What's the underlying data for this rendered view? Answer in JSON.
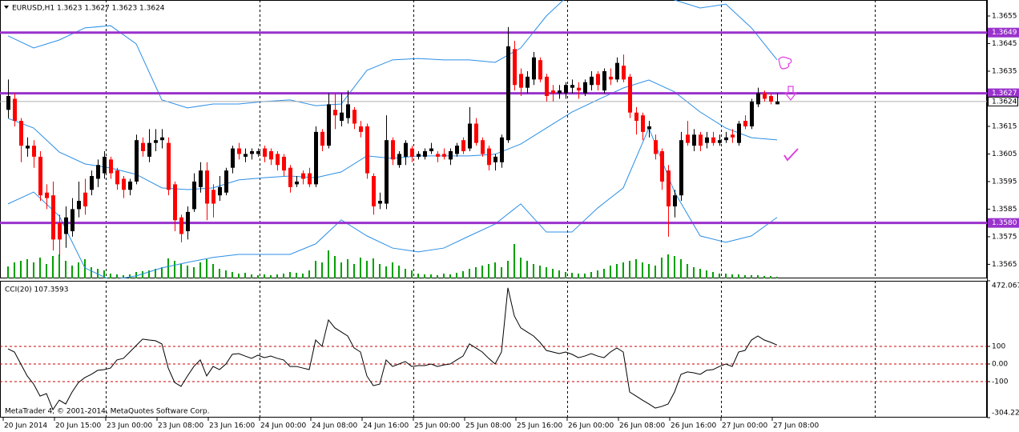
{
  "chart_data": {
    "type": "candlestick",
    "title": "EURUSD,H1  1.3623 1.3627 1.3623 1.3624",
    "footer": "MetaTrader 4, © 2001-2014, MetaQuotes Software Corp.",
    "categories": [
      "20 Jun 2014",
      null,
      null,
      null,
      null,
      null,
      null,
      null,
      "20 Jun 15:00",
      null,
      null,
      null,
      null,
      null,
      null,
      null,
      "23 Jun 00:00",
      null,
      null,
      null,
      null,
      null,
      null,
      null,
      "23 Jun 08:00",
      null,
      null,
      null,
      null,
      null,
      null,
      null,
      "23 Jun 16:00",
      null,
      null,
      null,
      null,
      null,
      null,
      null,
      "24 Jun 00:00",
      null,
      null,
      null,
      null,
      null,
      null,
      null,
      "24 Jun 08:00",
      null,
      null,
      null,
      null,
      null,
      null,
      null,
      "24 Jun 16:00",
      null,
      null,
      null,
      null,
      null,
      null,
      null,
      "25 Jun 00:00",
      null,
      null,
      null,
      null,
      null,
      null,
      null,
      "25 Jun 08:00",
      null,
      null,
      null,
      null,
      null,
      null,
      null,
      "25 Jun 16:00",
      null,
      null,
      null,
      null,
      null,
      null,
      null,
      "26 Jun 00:00",
      null,
      null,
      null,
      null,
      null,
      null,
      null,
      "26 Jun 08:00",
      null,
      null,
      null,
      null,
      null,
      null,
      null,
      "26 Jun 16:00",
      null,
      null,
      null,
      null,
      null,
      null,
      null,
      "27 Jun 00:00",
      null,
      null,
      null,
      null,
      null,
      null,
      null,
      "27 Jun 08:00"
    ],
    "ohlc": [
      [
        1.3621,
        1.3632,
        1.3618,
        1.3626
      ],
      [
        1.3625,
        1.3627,
        1.3615,
        1.3617
      ],
      [
        1.3617,
        1.3618,
        1.3602,
        1.3608
      ],
      [
        1.3607,
        1.3611,
        1.3604,
        1.3608
      ],
      [
        1.3608,
        1.361,
        1.36,
        1.3604
      ],
      [
        1.3604,
        1.3606,
        1.3588,
        1.359
      ],
      [
        1.3591,
        1.3594,
        1.3585,
        1.3589
      ],
      [
        1.359,
        1.3595,
        1.357,
        1.3574
      ],
      [
        1.358,
        1.3583,
        1.3568,
        1.3574
      ],
      [
        1.3576,
        1.3586,
        1.3571,
        1.3582
      ],
      [
        1.3577,
        1.3589,
        1.3575,
        1.3585
      ],
      [
        1.3585,
        1.3595,
        1.3582,
        1.3588
      ],
      [
        1.3591,
        1.3596,
        1.3583,
        1.3586
      ],
      [
        1.3592,
        1.3599,
        1.359,
        1.3597
      ],
      [
        1.3596,
        1.3603,
        1.3593,
        1.3601
      ],
      [
        1.3598,
        1.3606,
        1.3596,
        1.3604
      ],
      [
        1.3603,
        1.3604,
        1.3596,
        1.3598
      ],
      [
        1.3599,
        1.36,
        1.3592,
        1.3594
      ],
      [
        1.3596,
        1.3597,
        1.3589,
        1.3592
      ],
      [
        1.3592,
        1.3596,
        1.359,
        1.3595
      ],
      [
        1.3595,
        1.3612,
        1.3594,
        1.361
      ],
      [
        1.3609,
        1.3611,
        1.3604,
        1.3606
      ],
      [
        1.3604,
        1.3614,
        1.3602,
        1.3609
      ],
      [
        1.3609,
        1.3614,
        1.3606,
        1.361
      ],
      [
        1.361,
        1.3614,
        1.3607,
        1.3611
      ],
      [
        1.3609,
        1.3611,
        1.359,
        1.3592
      ],
      [
        1.3594,
        1.3595,
        1.3577,
        1.3581
      ],
      [
        1.3582,
        1.3583,
        1.3573,
        1.3576
      ],
      [
        1.3577,
        1.3586,
        1.3574,
        1.3584
      ],
      [
        1.3585,
        1.3598,
        1.3584,
        1.3595
      ],
      [
        1.3593,
        1.3602,
        1.3591,
        1.3599
      ],
      [
        1.3599,
        1.3602,
        1.3581,
        1.3587
      ],
      [
        1.3592,
        1.3594,
        1.3582,
        1.3587
      ],
      [
        1.359,
        1.3597,
        1.3588,
        1.3593
      ],
      [
        1.3591,
        1.36,
        1.359,
        1.3599
      ],
      [
        1.36,
        1.3608,
        1.3598,
        1.3607
      ],
      [
        1.3607,
        1.3609,
        1.3603,
        1.3605
      ],
      [
        1.3604,
        1.3607,
        1.3602,
        1.3605
      ],
      [
        1.3605,
        1.3607,
        1.3603,
        1.3606
      ],
      [
        1.3605,
        1.3607,
        1.3604,
        1.3606
      ],
      [
        1.3607,
        1.3608,
        1.3602,
        1.3604
      ],
      [
        1.3606,
        1.3607,
        1.3601,
        1.3603
      ],
      [
        1.3605,
        1.3606,
        1.3599,
        1.3601
      ],
      [
        1.3604,
        1.3605,
        1.3597,
        1.3599
      ],
      [
        1.36,
        1.3601,
        1.3591,
        1.3593
      ],
      [
        1.3594,
        1.3597,
        1.3593,
        1.3595
      ],
      [
        1.3598,
        1.3599,
        1.3594,
        1.3596
      ],
      [
        1.3598,
        1.36,
        1.3593,
        1.3594
      ],
      [
        1.3594,
        1.3615,
        1.3593,
        1.3613
      ],
      [
        1.3613,
        1.3614,
        1.3606,
        1.3608
      ],
      [
        1.3608,
        1.3627,
        1.3607,
        1.3623
      ],
      [
        1.3621,
        1.3627,
        1.3614,
        1.3619
      ],
      [
        1.3617,
        1.3627,
        1.3615,
        1.362
      ],
      [
        1.3618,
        1.3628,
        1.3616,
        1.3623
      ],
      [
        1.3621,
        1.3622,
        1.3614,
        1.3616
      ],
      [
        1.3615,
        1.3617,
        1.3611,
        1.3613
      ],
      [
        1.3615,
        1.3616,
        1.3596,
        1.3598
      ],
      [
        1.3597,
        1.3598,
        1.3583,
        1.3586
      ],
      [
        1.3587,
        1.3591,
        1.3585,
        1.3588
      ],
      [
        1.3587,
        1.3619,
        1.3585,
        1.361
      ],
      [
        1.361,
        1.3611,
        1.3601,
        1.3603
      ],
      [
        1.3601,
        1.3606,
        1.36,
        1.3605
      ],
      [
        1.3604,
        1.361,
        1.3601,
        1.3609
      ],
      [
        1.3607,
        1.3608,
        1.3602,
        1.3604
      ],
      [
        1.3604,
        1.3606,
        1.3603,
        1.3605
      ],
      [
        1.3604,
        1.3607,
        1.3603,
        1.3606
      ],
      [
        1.3606,
        1.3609,
        1.3605,
        1.3607
      ],
      [
        1.3605,
        1.3606,
        1.3602,
        1.3604
      ],
      [
        1.3605,
        1.3607,
        1.3603,
        1.3604
      ],
      [
        1.3603,
        1.3607,
        1.3601,
        1.3606
      ],
      [
        1.3605,
        1.3609,
        1.3604,
        1.3608
      ],
      [
        1.361,
        1.3611,
        1.3605,
        1.3606
      ],
      [
        1.3607,
        1.3622,
        1.3606,
        1.3616
      ],
      [
        1.3616,
        1.3618,
        1.3608,
        1.3609
      ],
      [
        1.361,
        1.3611,
        1.3604,
        1.3605
      ],
      [
        1.3607,
        1.3608,
        1.3599,
        1.3601
      ],
      [
        1.3602,
        1.3605,
        1.3599,
        1.3604
      ],
      [
        1.3602,
        1.3612,
        1.36,
        1.3611
      ],
      [
        1.361,
        1.3651,
        1.3609,
        1.3644
      ],
      [
        1.3643,
        1.3646,
        1.3628,
        1.363
      ],
      [
        1.3634,
        1.3636,
        1.3626,
        1.3629
      ],
      [
        1.3629,
        1.3635,
        1.3627,
        1.3633
      ],
      [
        1.3632,
        1.3642,
        1.363,
        1.364
      ],
      [
        1.3639,
        1.364,
        1.3631,
        1.3632
      ],
      [
        1.3633,
        1.3634,
        1.3624,
        1.3626
      ],
      [
        1.3628,
        1.363,
        1.3624,
        1.3627
      ],
      [
        1.3627,
        1.363,
        1.3625,
        1.3628
      ],
      [
        1.3627,
        1.3631,
        1.3625,
        1.363
      ],
      [
        1.3629,
        1.3632,
        1.3627,
        1.363
      ],
      [
        1.3629,
        1.3631,
        1.3625,
        1.3628
      ],
      [
        1.3627,
        1.3632,
        1.3626,
        1.3631
      ],
      [
        1.363,
        1.3635,
        1.3628,
        1.3633
      ],
      [
        1.3634,
        1.3635,
        1.3628,
        1.363
      ],
      [
        1.3628,
        1.3636,
        1.3627,
        1.3635
      ],
      [
        1.3633,
        1.3636,
        1.363,
        1.3632
      ],
      [
        1.3632,
        1.364,
        1.3631,
        1.3638
      ],
      [
        1.3637,
        1.3641,
        1.3631,
        1.3632
      ],
      [
        1.3633,
        1.3634,
        1.3618,
        1.362
      ],
      [
        1.362,
        1.3622,
        1.3612,
        1.3617
      ],
      [
        1.3619,
        1.362,
        1.361,
        1.3613
      ],
      [
        1.3614,
        1.3617,
        1.3611,
        1.3615
      ],
      [
        1.361,
        1.3612,
        1.3603,
        1.3605
      ],
      [
        1.3606,
        1.3607,
        1.3592,
        1.3595
      ],
      [
        1.3599,
        1.3601,
        1.3575,
        1.3586
      ],
      [
        1.3586,
        1.3592,
        1.3582,
        1.359
      ],
      [
        1.359,
        1.3613,
        1.3588,
        1.361
      ],
      [
        1.3612,
        1.3617,
        1.3608,
        1.3609
      ],
      [
        1.3608,
        1.3614,
        1.3606,
        1.3612
      ],
      [
        1.3612,
        1.3613,
        1.3606,
        1.3608
      ],
      [
        1.3609,
        1.3613,
        1.3607,
        1.3611
      ],
      [
        1.3611,
        1.3613,
        1.3608,
        1.3609
      ],
      [
        1.3609,
        1.3612,
        1.3608,
        1.361
      ],
      [
        1.361,
        1.3613,
        1.3609,
        1.3611
      ],
      [
        1.3612,
        1.3614,
        1.3609,
        1.3611
      ],
      [
        1.3609,
        1.3617,
        1.3608,
        1.3616
      ],
      [
        1.3617,
        1.3619,
        1.3614,
        1.3615
      ],
      [
        1.3615,
        1.3625,
        1.3614,
        1.3624
      ],
      [
        1.3623,
        1.3629,
        1.3622,
        1.3627
      ],
      [
        1.3627,
        1.3628,
        1.3624,
        1.3625
      ],
      [
        1.3626,
        1.3627,
        1.3623,
        1.3624
      ],
      [
        1.3623,
        1.3627,
        1.3623,
        1.3624
      ]
    ],
    "up_color": "#000000",
    "down_color": "#ff0000",
    "ylim": [
      1.35599,
      1.36608
    ],
    "yticks": [
      1.3655,
      1.3645,
      1.3635,
      1.3615,
      1.3605,
      1.3595,
      1.3585,
      1.3575,
      1.3565
    ],
    "hlines": [
      1.3649,
      1.3627,
      {
        "value": 1.358,
        "label": "1.3580"
      }
    ],
    "hline_color": "#9932cc",
    "current_price": 1.3624,
    "band_x": [
      0,
      4,
      8,
      12,
      16,
      20,
      24,
      28,
      32,
      36,
      40,
      44,
      48,
      52,
      56,
      60,
      64,
      68,
      72,
      76,
      80,
      84,
      88,
      92,
      96,
      100,
      104,
      108,
      112,
      116,
      120
    ],
    "bands": [
      {
        "color": "#2b8fe6",
        "values": [
          1.36478,
          1.36434,
          1.36463,
          1.36507,
          1.36515,
          1.36449,
          1.36246,
          1.36217,
          1.36231,
          1.36231,
          1.3624,
          1.36246,
          1.36225,
          1.36231,
          1.36353,
          1.36391,
          1.36396,
          1.36391,
          1.36391,
          1.36382,
          1.36434,
          1.3655,
          1.36637,
          1.36695,
          1.36695,
          1.36666,
          1.36608,
          1.36579,
          1.36593,
          1.36507,
          1.36391
        ]
      },
      {
        "color": "#2b8fe6",
        "values": [
          1.36179,
          1.36144,
          1.36057,
          1.36014,
          1.35999,
          1.35976,
          1.35927,
          1.35921,
          1.35927,
          1.35956,
          1.35964,
          1.3597,
          1.35964,
          1.35985,
          1.36043,
          1.36034,
          1.36043,
          1.36043,
          1.36043,
          1.36049,
          1.36086,
          1.36144,
          1.36202,
          1.36246,
          1.36289,
          1.36318,
          1.36275,
          1.36202,
          1.36144,
          1.36109,
          1.36101
        ]
      },
      {
        "color": "#2b8fe6",
        "values": [
          1.35869,
          1.35912,
          1.35825,
          1.35637,
          1.35593,
          1.35608,
          1.35637,
          1.35657,
          1.35675,
          1.35686,
          1.35686,
          1.35686,
          1.35724,
          1.35811,
          1.35753,
          1.35709,
          1.35695,
          1.35709,
          1.35753,
          1.35796,
          1.35869,
          1.35767,
          1.35767,
          1.35854,
          1.35927,
          1.36144,
          1.35912,
          1.35753,
          1.3573,
          1.35753,
          1.3582
        ]
      }
    ],
    "volume": [
      1500,
      2000,
      2200,
      2400,
      2000,
      2600,
      1800,
      2800,
      3000,
      2200,
      1600,
      2000,
      2400,
      1400,
      1200,
      1000,
      600,
      500,
      400,
      500,
      800,
      900,
      1000,
      1200,
      1400,
      2500,
      2200,
      1800,
      1600,
      1400,
      2000,
      2400,
      1800,
      1200,
      1000,
      800,
      600,
      700,
      500,
      400,
      500,
      400,
      500,
      600,
      800,
      700,
      600,
      1000,
      2200,
      2000,
      3500,
      2800,
      2000,
      2400,
      1800,
      2600,
      2200,
      2500,
      1800,
      1500,
      2000,
      1600,
      1200,
      1000,
      600,
      500,
      500,
      400,
      600,
      500,
      700,
      900,
      1200,
      1400,
      1600,
      1800,
      2000,
      1400,
      2200,
      4300,
      2600,
      2200,
      1800,
      1600,
      1400,
      1200,
      1000,
      800,
      700,
      600,
      600,
      800,
      1000,
      1200,
      1600,
      1800,
      2000,
      2200,
      2400,
      2000,
      1800,
      1600,
      2600,
      3000,
      2800,
      2400,
      1800,
      1400,
      1200,
      1000,
      800,
      600,
      600,
      500,
      500,
      400,
      400,
      400,
      300,
      300,
      200
    ],
    "volume_color": "#00a000",
    "cci": {
      "title": "CCI(20) 107.3593",
      "color": "#000000",
      "values": [
        86,
        68,
        0,
        -68,
        -114,
        -182,
        -168,
        -259,
        -205,
        -227,
        -159,
        -105,
        -77,
        -59,
        -36,
        -32,
        -23,
        23,
        32,
        68,
        105,
        141,
        136,
        132,
        114,
        -23,
        -105,
        -127,
        -68,
        -14,
        23,
        -68,
        -14,
        -32,
        0,
        55,
        59,
        45,
        32,
        50,
        36,
        45,
        32,
        23,
        -14,
        -14,
        -23,
        -32,
        136,
        100,
        250,
        205,
        182,
        159,
        91,
        68,
        -68,
        -123,
        -114,
        23,
        -14,
        0,
        14,
        -14,
        -9,
        -9,
        0,
        -14,
        -5,
        0,
        23,
        45,
        114,
        91,
        68,
        32,
        0,
        68,
        432,
        273,
        205,
        182,
        159,
        123,
        77,
        68,
        59,
        68,
        55,
        36,
        45,
        59,
        45,
        36,
        68,
        91,
        68,
        -159,
        -182,
        -205,
        -227,
        -250,
        -241,
        -227,
        -159,
        -59,
        -45,
        -50,
        -59,
        -36,
        -32,
        -14,
        0,
        -14,
        68,
        77,
        136,
        159,
        136,
        123,
        107.3593
      ],
      "ylim": [
        -304.223,
        472.0675
      ],
      "yticks": [
        472.0675,
        100,
        {
          "value": 0,
          "label": "0.00"
        },
        -100,
        -304.223
      ],
      "levels": [
        100,
        0,
        -100
      ],
      "level_color": "#cc0000"
    }
  }
}
